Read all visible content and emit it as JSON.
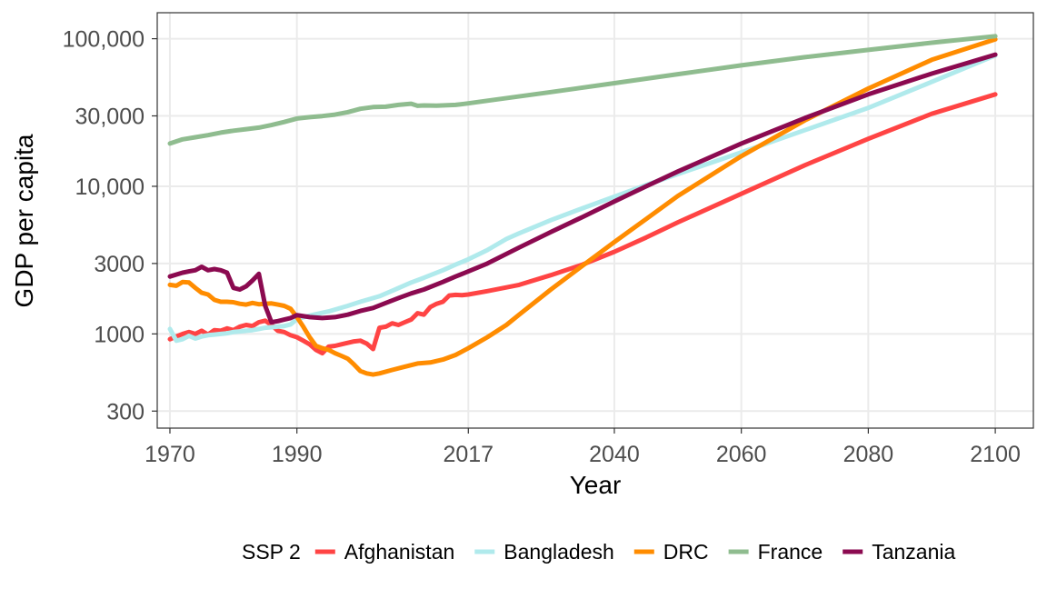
{
  "chart_data": {
    "type": "line",
    "xlabel": "Year",
    "ylabel": "GDP per capita",
    "xlim": [
      1968,
      2106
    ],
    "ylim": [
      230,
      150000
    ],
    "y_scale": "log",
    "grid": true,
    "legend_position": "bottom",
    "legend_title": "SSP 2",
    "x_ticks": [
      1970,
      1990,
      2017,
      2040,
      2060,
      2080,
      2100
    ],
    "x_tick_labels": [
      "1970",
      "1990",
      "2017",
      "2040",
      "2060",
      "2080",
      "2100"
    ],
    "y_ticks": [
      300,
      1000,
      3000,
      10000,
      30000,
      100000
    ],
    "y_tick_labels": [
      "300",
      "1000",
      "3000",
      "10,000",
      "30,000",
      "100,000"
    ],
    "series": [
      {
        "name": "Afghanistan",
        "color": "#ff4444",
        "points": [
          [
            1970,
            920
          ],
          [
            1971,
            960
          ],
          [
            1972,
            1000
          ],
          [
            1973,
            1030
          ],
          [
            1974,
            1000
          ],
          [
            1975,
            1050
          ],
          [
            1976,
            990
          ],
          [
            1977,
            1060
          ],
          [
            1978,
            1050
          ],
          [
            1979,
            1090
          ],
          [
            1980,
            1060
          ],
          [
            1981,
            1120
          ],
          [
            1982,
            1150
          ],
          [
            1983,
            1130
          ],
          [
            1984,
            1200
          ],
          [
            1985,
            1230
          ],
          [
            1986,
            1150
          ],
          [
            1987,
            1050
          ],
          [
            1988,
            1030
          ],
          [
            1989,
            980
          ],
          [
            1990,
            950
          ],
          [
            1991,
            900
          ],
          [
            1992,
            850
          ],
          [
            1993,
            780
          ],
          [
            1994,
            740
          ],
          [
            1995,
            820
          ],
          [
            1996,
            830
          ],
          [
            1997,
            850
          ],
          [
            1998,
            870
          ],
          [
            1999,
            890
          ],
          [
            2000,
            900
          ],
          [
            2001,
            860
          ],
          [
            2002,
            790
          ],
          [
            2003,
            1100
          ],
          [
            2004,
            1120
          ],
          [
            2005,
            1180
          ],
          [
            2006,
            1150
          ],
          [
            2007,
            1200
          ],
          [
            2008,
            1250
          ],
          [
            2009,
            1380
          ],
          [
            2010,
            1350
          ],
          [
            2011,
            1520
          ],
          [
            2012,
            1600
          ],
          [
            2013,
            1650
          ],
          [
            2014,
            1820
          ],
          [
            2015,
            1840
          ],
          [
            2016,
            1830
          ],
          [
            2017,
            1850
          ],
          [
            2020,
            1950
          ],
          [
            2025,
            2150
          ],
          [
            2030,
            2500
          ],
          [
            2035,
            2950
          ],
          [
            2040,
            3600
          ],
          [
            2045,
            4500
          ],
          [
            2050,
            5700
          ],
          [
            2060,
            8900
          ],
          [
            2070,
            13900
          ],
          [
            2080,
            21000
          ],
          [
            2090,
            31000
          ],
          [
            2100,
            42000
          ]
        ]
      },
      {
        "name": "Bangladesh",
        "color": "#b0eaec",
        "points": [
          [
            1970,
            1080
          ],
          [
            1971,
            900
          ],
          [
            1972,
            920
          ],
          [
            1973,
            970
          ],
          [
            1974,
            930
          ],
          [
            1975,
            960
          ],
          [
            1976,
            980
          ],
          [
            1977,
            990
          ],
          [
            1978,
            1000
          ],
          [
            1979,
            1010
          ],
          [
            1980,
            1030
          ],
          [
            1981,
            1040
          ],
          [
            1982,
            1050
          ],
          [
            1983,
            1060
          ],
          [
            1984,
            1080
          ],
          [
            1985,
            1100
          ],
          [
            1986,
            1110
          ],
          [
            1987,
            1120
          ],
          [
            1988,
            1130
          ],
          [
            1989,
            1160
          ],
          [
            1990,
            1260
          ],
          [
            1992,
            1330
          ],
          [
            1995,
            1420
          ],
          [
            1998,
            1550
          ],
          [
            2000,
            1650
          ],
          [
            2003,
            1800
          ],
          [
            2005,
            1960
          ],
          [
            2008,
            2230
          ],
          [
            2010,
            2400
          ],
          [
            2013,
            2700
          ],
          [
            2015,
            2950
          ],
          [
            2017,
            3200
          ],
          [
            2020,
            3700
          ],
          [
            2023,
            4400
          ],
          [
            2025,
            4800
          ],
          [
            2030,
            5900
          ],
          [
            2035,
            7100
          ],
          [
            2040,
            8500
          ],
          [
            2045,
            10200
          ],
          [
            2050,
            12100
          ],
          [
            2060,
            17000
          ],
          [
            2070,
            24000
          ],
          [
            2080,
            34000
          ],
          [
            2090,
            51000
          ],
          [
            2100,
            77000
          ]
        ]
      },
      {
        "name": "DRC",
        "color": "#ff8c00",
        "points": [
          [
            1970,
            2150
          ],
          [
            1971,
            2120
          ],
          [
            1972,
            2250
          ],
          [
            1973,
            2230
          ],
          [
            1974,
            2050
          ],
          [
            1975,
            1900
          ],
          [
            1976,
            1850
          ],
          [
            1977,
            1700
          ],
          [
            1978,
            1650
          ],
          [
            1979,
            1650
          ],
          [
            1980,
            1640
          ],
          [
            1981,
            1600
          ],
          [
            1982,
            1580
          ],
          [
            1983,
            1620
          ],
          [
            1984,
            1590
          ],
          [
            1985,
            1600
          ],
          [
            1986,
            1610
          ],
          [
            1987,
            1580
          ],
          [
            1988,
            1550
          ],
          [
            1989,
            1480
          ],
          [
            1990,
            1300
          ],
          [
            1991,
            1120
          ],
          [
            1992,
            950
          ],
          [
            1993,
            830
          ],
          [
            1994,
            800
          ],
          [
            1995,
            780
          ],
          [
            1996,
            740
          ],
          [
            1997,
            710
          ],
          [
            1998,
            680
          ],
          [
            1999,
            620
          ],
          [
            2000,
            560
          ],
          [
            2001,
            540
          ],
          [
            2002,
            530
          ],
          [
            2003,
            540
          ],
          [
            2005,
            570
          ],
          [
            2007,
            600
          ],
          [
            2009,
            630
          ],
          [
            2011,
            640
          ],
          [
            2013,
            670
          ],
          [
            2015,
            720
          ],
          [
            2017,
            800
          ],
          [
            2020,
            950
          ],
          [
            2023,
            1150
          ],
          [
            2025,
            1350
          ],
          [
            2030,
            2000
          ],
          [
            2035,
            2900
          ],
          [
            2040,
            4200
          ],
          [
            2045,
            6000
          ],
          [
            2050,
            8600
          ],
          [
            2060,
            16000
          ],
          [
            2070,
            28000
          ],
          [
            2080,
            46000
          ],
          [
            2090,
            72000
          ],
          [
            2100,
            99000
          ]
        ]
      },
      {
        "name": "France",
        "color": "#8fbc8f",
        "points": [
          [
            1970,
            19500
          ],
          [
            1972,
            20800
          ],
          [
            1974,
            21500
          ],
          [
            1976,
            22200
          ],
          [
            1978,
            23100
          ],
          [
            1980,
            23800
          ],
          [
            1982,
            24400
          ],
          [
            1984,
            25000
          ],
          [
            1986,
            26000
          ],
          [
            1988,
            27300
          ],
          [
            1990,
            28800
          ],
          [
            1992,
            29400
          ],
          [
            1994,
            29900
          ],
          [
            1996,
            30600
          ],
          [
            1998,
            31800
          ],
          [
            2000,
            33500
          ],
          [
            2002,
            34400
          ],
          [
            2004,
            34600
          ],
          [
            2006,
            35600
          ],
          [
            2008,
            36300
          ],
          [
            2009,
            35100
          ],
          [
            2010,
            35300
          ],
          [
            2012,
            35200
          ],
          [
            2015,
            35600
          ],
          [
            2017,
            36500
          ],
          [
            2020,
            38000
          ],
          [
            2030,
            43500
          ],
          [
            2040,
            50000
          ],
          [
            2050,
            57500
          ],
          [
            2060,
            66000
          ],
          [
            2070,
            75000
          ],
          [
            2080,
            84000
          ],
          [
            2090,
            94000
          ],
          [
            2100,
            104000
          ]
        ]
      },
      {
        "name": "Tanzania",
        "color": "#8b0a50",
        "points": [
          [
            1970,
            2450
          ],
          [
            1972,
            2600
          ],
          [
            1973,
            2650
          ],
          [
            1974,
            2700
          ],
          [
            1975,
            2850
          ],
          [
            1976,
            2700
          ],
          [
            1977,
            2750
          ],
          [
            1978,
            2700
          ],
          [
            1979,
            2600
          ],
          [
            1980,
            2050
          ],
          [
            1981,
            2000
          ],
          [
            1982,
            2100
          ],
          [
            1983,
            2300
          ],
          [
            1984,
            2550
          ],
          [
            1985,
            1550
          ],
          [
            1986,
            1200
          ],
          [
            1987,
            1220
          ],
          [
            1988,
            1250
          ],
          [
            1989,
            1280
          ],
          [
            1990,
            1340
          ],
          [
            1992,
            1300
          ],
          [
            1994,
            1280
          ],
          [
            1996,
            1300
          ],
          [
            1998,
            1350
          ],
          [
            2000,
            1430
          ],
          [
            2002,
            1500
          ],
          [
            2004,
            1620
          ],
          [
            2006,
            1750
          ],
          [
            2008,
            1880
          ],
          [
            2010,
            2000
          ],
          [
            2013,
            2250
          ],
          [
            2015,
            2450
          ],
          [
            2017,
            2650
          ],
          [
            2020,
            3000
          ],
          [
            2025,
            3850
          ],
          [
            2030,
            4900
          ],
          [
            2035,
            6200
          ],
          [
            2040,
            7900
          ],
          [
            2045,
            10000
          ],
          [
            2050,
            12600
          ],
          [
            2060,
            19500
          ],
          [
            2070,
            29000
          ],
          [
            2080,
            42000
          ],
          [
            2090,
            58000
          ],
          [
            2100,
            78000
          ]
        ]
      }
    ]
  }
}
